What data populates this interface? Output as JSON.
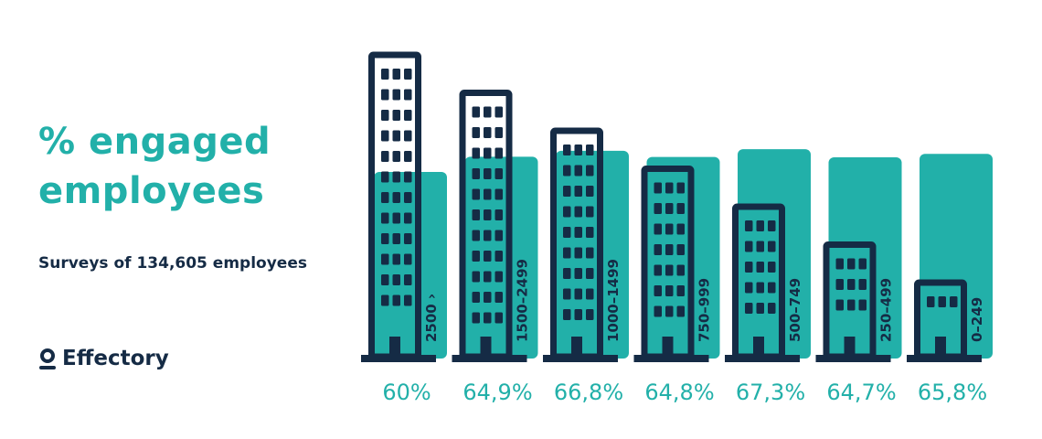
{
  "chart_data": {
    "type": "bar",
    "title": "% engaged employees",
    "subtitle": "Surveys of 134,605 employees",
    "brand": "Effectory",
    "categories": [
      "2500 ›",
      "1500–2499",
      "1000–1499",
      "750–999",
      "500–749",
      "250–499",
      "0–249"
    ],
    "values": [
      60,
      64.9,
      66.8,
      64.8,
      67.3,
      64.7,
      65.8
    ],
    "value_labels": [
      "60%",
      "64,9%",
      "66,8%",
      "64,8%",
      "67,3%",
      "64,7%",
      "65,8%"
    ],
    "color": "#22b0a9"
  }
}
